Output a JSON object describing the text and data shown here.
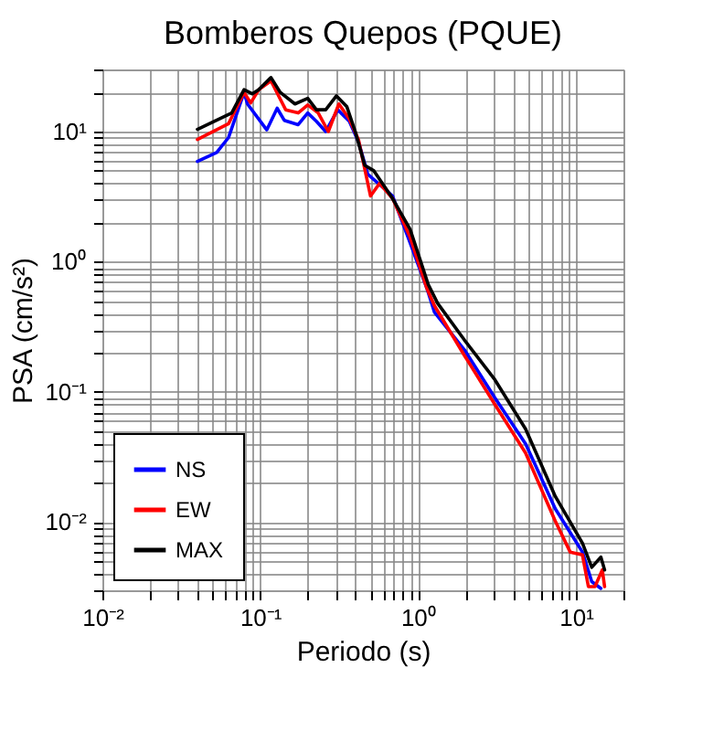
{
  "chart_data": {
    "type": "line",
    "title": "Bomberos Quepos (PQUE)",
    "xlabel": "Periodo (s)",
    "ylabel": "PSA (cm/s²)",
    "log": "xy",
    "grid": true,
    "legend": "bottom left",
    "line_style": "solid",
    "xlim": [
      0.01,
      20
    ],
    "ylim": [
      0.003,
      30
    ],
    "xticks": [
      {
        "value": 0.01,
        "label": "10⁻²"
      },
      {
        "value": 0.02,
        "label": null
      },
      {
        "value": 0.03,
        "label": null
      },
      {
        "value": 0.04,
        "label": null
      },
      {
        "value": 0.05,
        "label": null
      },
      {
        "value": 0.06,
        "label": null
      },
      {
        "value": 0.07,
        "label": null
      },
      {
        "value": 0.08,
        "label": null
      },
      {
        "value": 0.09,
        "label": null
      },
      {
        "value": 0.1,
        "label": "10⁻¹"
      },
      {
        "value": 0.2,
        "label": null
      },
      {
        "value": 0.3,
        "label": null
      },
      {
        "value": 0.4,
        "label": null
      },
      {
        "value": 0.5,
        "label": null
      },
      {
        "value": 0.6,
        "label": null
      },
      {
        "value": 0.7,
        "label": null
      },
      {
        "value": 0.8,
        "label": null
      },
      {
        "value": 0.9,
        "label": null
      },
      {
        "value": 1,
        "label": "10⁰"
      },
      {
        "value": 2,
        "label": null
      },
      {
        "value": 3,
        "label": null
      },
      {
        "value": 4,
        "label": null
      },
      {
        "value": 5,
        "label": null
      },
      {
        "value": 6,
        "label": null
      },
      {
        "value": 7,
        "label": null
      },
      {
        "value": 8,
        "label": null
      },
      {
        "value": 9,
        "label": null
      },
      {
        "value": 10,
        "label": "10¹"
      },
      {
        "value": 20,
        "label": null
      }
    ],
    "yticks": [
      {
        "value": 0.003,
        "label": null
      },
      {
        "value": 0.004,
        "label": null
      },
      {
        "value": 0.005,
        "label": null
      },
      {
        "value": 0.006,
        "label": null
      },
      {
        "value": 0.007,
        "label": null
      },
      {
        "value": 0.008,
        "label": null
      },
      {
        "value": 0.009,
        "label": null
      },
      {
        "value": 0.01,
        "label": "10⁻²"
      },
      {
        "value": 0.02,
        "label": null
      },
      {
        "value": 0.03,
        "label": null
      },
      {
        "value": 0.04,
        "label": null
      },
      {
        "value": 0.05,
        "label": null
      },
      {
        "value": 0.06,
        "label": null
      },
      {
        "value": 0.07,
        "label": null
      },
      {
        "value": 0.08,
        "label": null
      },
      {
        "value": 0.09,
        "label": null
      },
      {
        "value": 0.1,
        "label": "10⁻¹"
      },
      {
        "value": 0.2,
        "label": null
      },
      {
        "value": 0.3,
        "label": null
      },
      {
        "value": 0.4,
        "label": null
      },
      {
        "value": 0.5,
        "label": null
      },
      {
        "value": 0.6,
        "label": null
      },
      {
        "value": 0.7,
        "label": null
      },
      {
        "value": 0.8,
        "label": null
      },
      {
        "value": 0.9,
        "label": null
      },
      {
        "value": 1,
        "label": "10⁰"
      },
      {
        "value": 2,
        "label": null
      },
      {
        "value": 3,
        "label": null
      },
      {
        "value": 4,
        "label": null
      },
      {
        "value": 5,
        "label": null
      },
      {
        "value": 6,
        "label": null
      },
      {
        "value": 7,
        "label": null
      },
      {
        "value": 8,
        "label": null
      },
      {
        "value": 9,
        "label": null
      },
      {
        "value": 10,
        "label": "10¹"
      },
      {
        "value": 20,
        "label": null
      },
      {
        "value": 30,
        "label": null
      }
    ],
    "series": [
      {
        "name": "NS",
        "color": "#0000ff",
        "x": [
          0.04,
          0.053,
          0.063,
          0.079,
          0.083,
          0.11,
          0.128,
          0.142,
          0.174,
          0.2,
          0.227,
          0.26,
          0.31,
          0.367,
          0.42,
          0.48,
          0.69,
          0.89,
          1.14,
          1.27,
          1.97,
          3.07,
          4.8,
          7.4,
          11,
          12.6,
          14.4
        ],
        "values": [
          5.9,
          6.9,
          9.0,
          20,
          16.3,
          10.3,
          15.1,
          12.2,
          11.3,
          13.9,
          12,
          10,
          14.7,
          12,
          8.3,
          4.7,
          3.2,
          1.4,
          0.62,
          0.41,
          0.21,
          0.09,
          0.04,
          0.0127,
          0.0059,
          0.0035,
          0.0031
        ]
      },
      {
        "name": "EW",
        "color": "#ff0000",
        "x": [
          0.04,
          0.063,
          0.079,
          0.087,
          0.098,
          0.117,
          0.145,
          0.174,
          0.2,
          0.233,
          0.27,
          0.315,
          0.367,
          0.42,
          0.5,
          0.57,
          0.69,
          0.89,
          1.14,
          1.27,
          1.97,
          3.07,
          4.8,
          7.4,
          9.2,
          11,
          12,
          13.2,
          14.7,
          15.2
        ],
        "values": [
          8.7,
          11.5,
          20,
          16.6,
          21,
          24.5,
          14.7,
          13.9,
          16,
          13.9,
          10,
          16.3,
          12.5,
          8.6,
          3.2,
          4.0,
          3.06,
          1.55,
          0.62,
          0.46,
          0.19,
          0.08,
          0.034,
          0.0102,
          0.0059,
          0.0056,
          0.0032,
          0.0032,
          0.0043,
          0.0032
        ]
      },
      {
        "name": "MAX",
        "color": "#000000",
        "x": [
          0.04,
          0.066,
          0.079,
          0.089,
          0.098,
          0.117,
          0.134,
          0.166,
          0.2,
          0.227,
          0.26,
          0.304,
          0.354,
          0.4,
          0.46,
          0.525,
          0.69,
          0.89,
          1.16,
          1.33,
          1.97,
          3.07,
          4.8,
          7.4,
          11,
          12.6,
          14.4,
          15.2
        ],
        "values": [
          10.4,
          13.9,
          21,
          19.5,
          21,
          26,
          20,
          16.3,
          18,
          14.7,
          14.7,
          18.8,
          15.5,
          10,
          5.5,
          5.0,
          3.06,
          1.78,
          0.67,
          0.48,
          0.25,
          0.124,
          0.052,
          0.0158,
          0.0069,
          0.0045,
          0.0054,
          0.0043
        ]
      }
    ]
  }
}
